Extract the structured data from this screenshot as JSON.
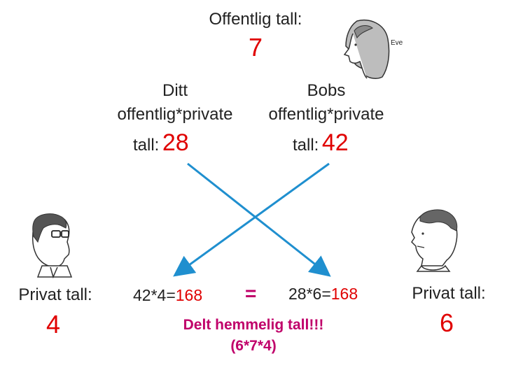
{
  "public": {
    "label": "Offentlig tall:",
    "value": "7"
  },
  "eve": {
    "name": "Eve"
  },
  "alice_public": {
    "line1": "Ditt",
    "line2": "offentlig*private",
    "prefix": "tall:",
    "value": "28"
  },
  "bob_public": {
    "line1": "Bobs",
    "line2": "offentlig*private",
    "prefix": "tall:",
    "value": "42"
  },
  "left_private": {
    "label": "Privat tall:",
    "value": "4"
  },
  "right_private": {
    "label": "Privat tall:",
    "value": "6"
  },
  "left_calc": {
    "expr": "42*4=",
    "result": "168"
  },
  "right_calc": {
    "expr": "28*6=",
    "result": "168"
  },
  "equals": "=",
  "shared": {
    "line1": "Delt hemmelig tall!!!",
    "line2": "(6*7*4)"
  },
  "colors": {
    "number": "#e00000",
    "arrow": "#1f8fcf",
    "shared": "#c0006a"
  }
}
